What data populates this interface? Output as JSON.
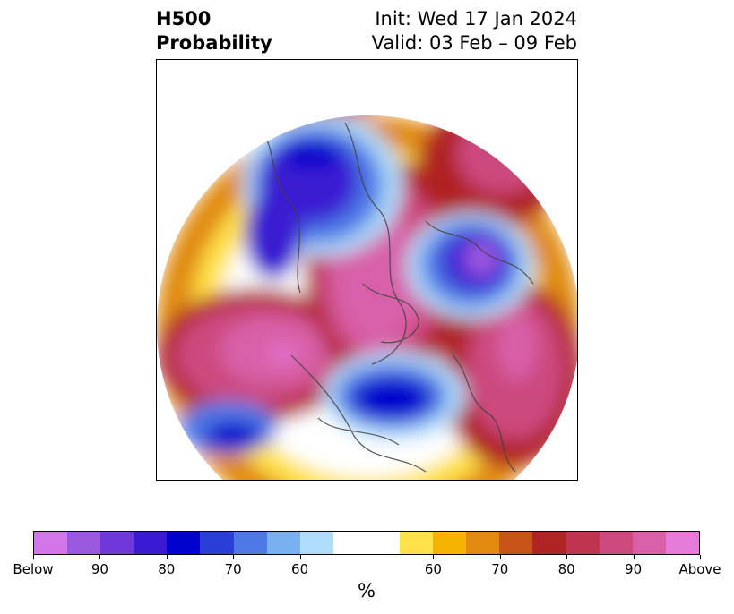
{
  "title": {
    "left_line1": "H500",
    "left_line2": "Probability",
    "right_line1": "Init: Wed 17 Jan 2024",
    "right_line2": "Valid: 03 Feb – 09 Feb"
  },
  "colorbar": {
    "colors": [
      "#d376e8",
      "#9b58e0",
      "#7038d8",
      "#3a1ad2",
      "#0000cc",
      "#2a3ed8",
      "#4e78e6",
      "#78b0f0",
      "#aedcfa",
      "#ffffff",
      "#ffffff",
      "#ffe24a",
      "#f5b400",
      "#e08a10",
      "#c8541a",
      "#b02424",
      "#c03450",
      "#cc4a7e",
      "#d860a8",
      "#e67ad8"
    ],
    "tick_labels": [
      "Below",
      "90",
      "80",
      "70",
      "60",
      "60",
      "70",
      "80",
      "90",
      "Above"
    ],
    "label": "%"
  },
  "map": {
    "description_colors": {
      "above_high": "#d860a8",
      "below_high": "#0000cc"
    }
  }
}
